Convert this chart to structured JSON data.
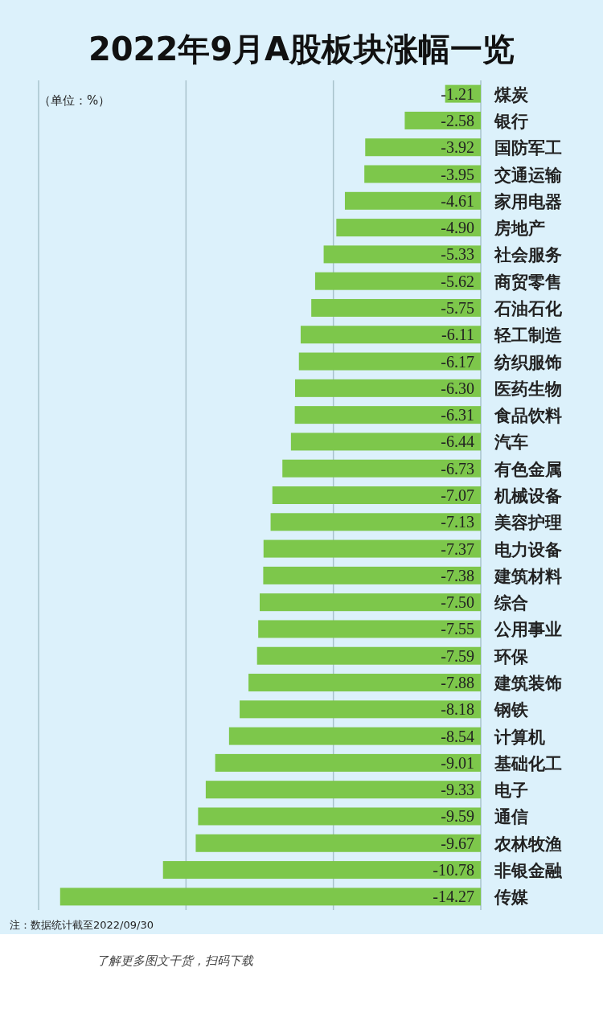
{
  "chart_data": {
    "type": "bar",
    "orientation": "horizontal",
    "title": "2022年9月A股板块涨幅一览",
    "categories": [
      "煤炭",
      "银行",
      "国防军工",
      "交通运输",
      "家用电器",
      "房地产",
      "社会服务",
      "商贸零售",
      "石油石化",
      "轻工制造",
      "纺织服饰",
      "医药生物",
      "食品饮料",
      "汽车",
      "有色金属",
      "机械设备",
      "美容护理",
      "电力设备",
      "建筑材料",
      "综合",
      "公用事业",
      "环保",
      "建筑装饰",
      "钢铁",
      "计算机",
      "基础化工",
      "电子",
      "通信",
      "农林牧渔",
      "非银金融",
      "传媒"
    ],
    "values": [
      -1.21,
      -2.58,
      -3.92,
      -3.95,
      -4.61,
      -4.9,
      -5.33,
      -5.62,
      -5.75,
      -6.11,
      -6.17,
      -6.3,
      -6.31,
      -6.44,
      -6.73,
      -7.07,
      -7.13,
      -7.37,
      -7.38,
      -7.5,
      -7.55,
      -7.59,
      -7.88,
      -8.18,
      -8.54,
      -9.01,
      -9.33,
      -9.59,
      -9.67,
      -10.78,
      -14.27
    ],
    "value_labels": [
      "-1.21",
      "-2.58",
      "-3.92",
      "-3.95",
      "-4.61",
      "-4.90",
      "-5.33",
      "-5.62",
      "-5.75",
      "-6.11",
      "-6.17",
      "-6.30",
      "-6.31",
      "-6.44",
      "-6.73",
      "-7.07",
      "-7.13",
      "-7.37",
      "-7.38",
      "-7.50",
      "-7.55",
      "-7.59",
      "-7.88",
      "-8.18",
      "-8.54",
      "-9.01",
      "-9.33",
      "-9.59",
      "-9.67",
      "-10.78",
      "-14.27"
    ],
    "color": "#7dc74b",
    "xlim": [
      -15,
      0
    ],
    "xticks": [
      {
        "value": -15,
        "label": null
      },
      {
        "value": -10,
        "label": null
      },
      {
        "value": -5,
        "label": null
      },
      {
        "value": 0,
        "label": null
      }
    ],
    "grid": "x",
    "annotations": [
      "（单位：%）",
      "注：数据统计截至2022/09/30",
      "了解更多图文干货，扫码下载"
    ]
  }
}
